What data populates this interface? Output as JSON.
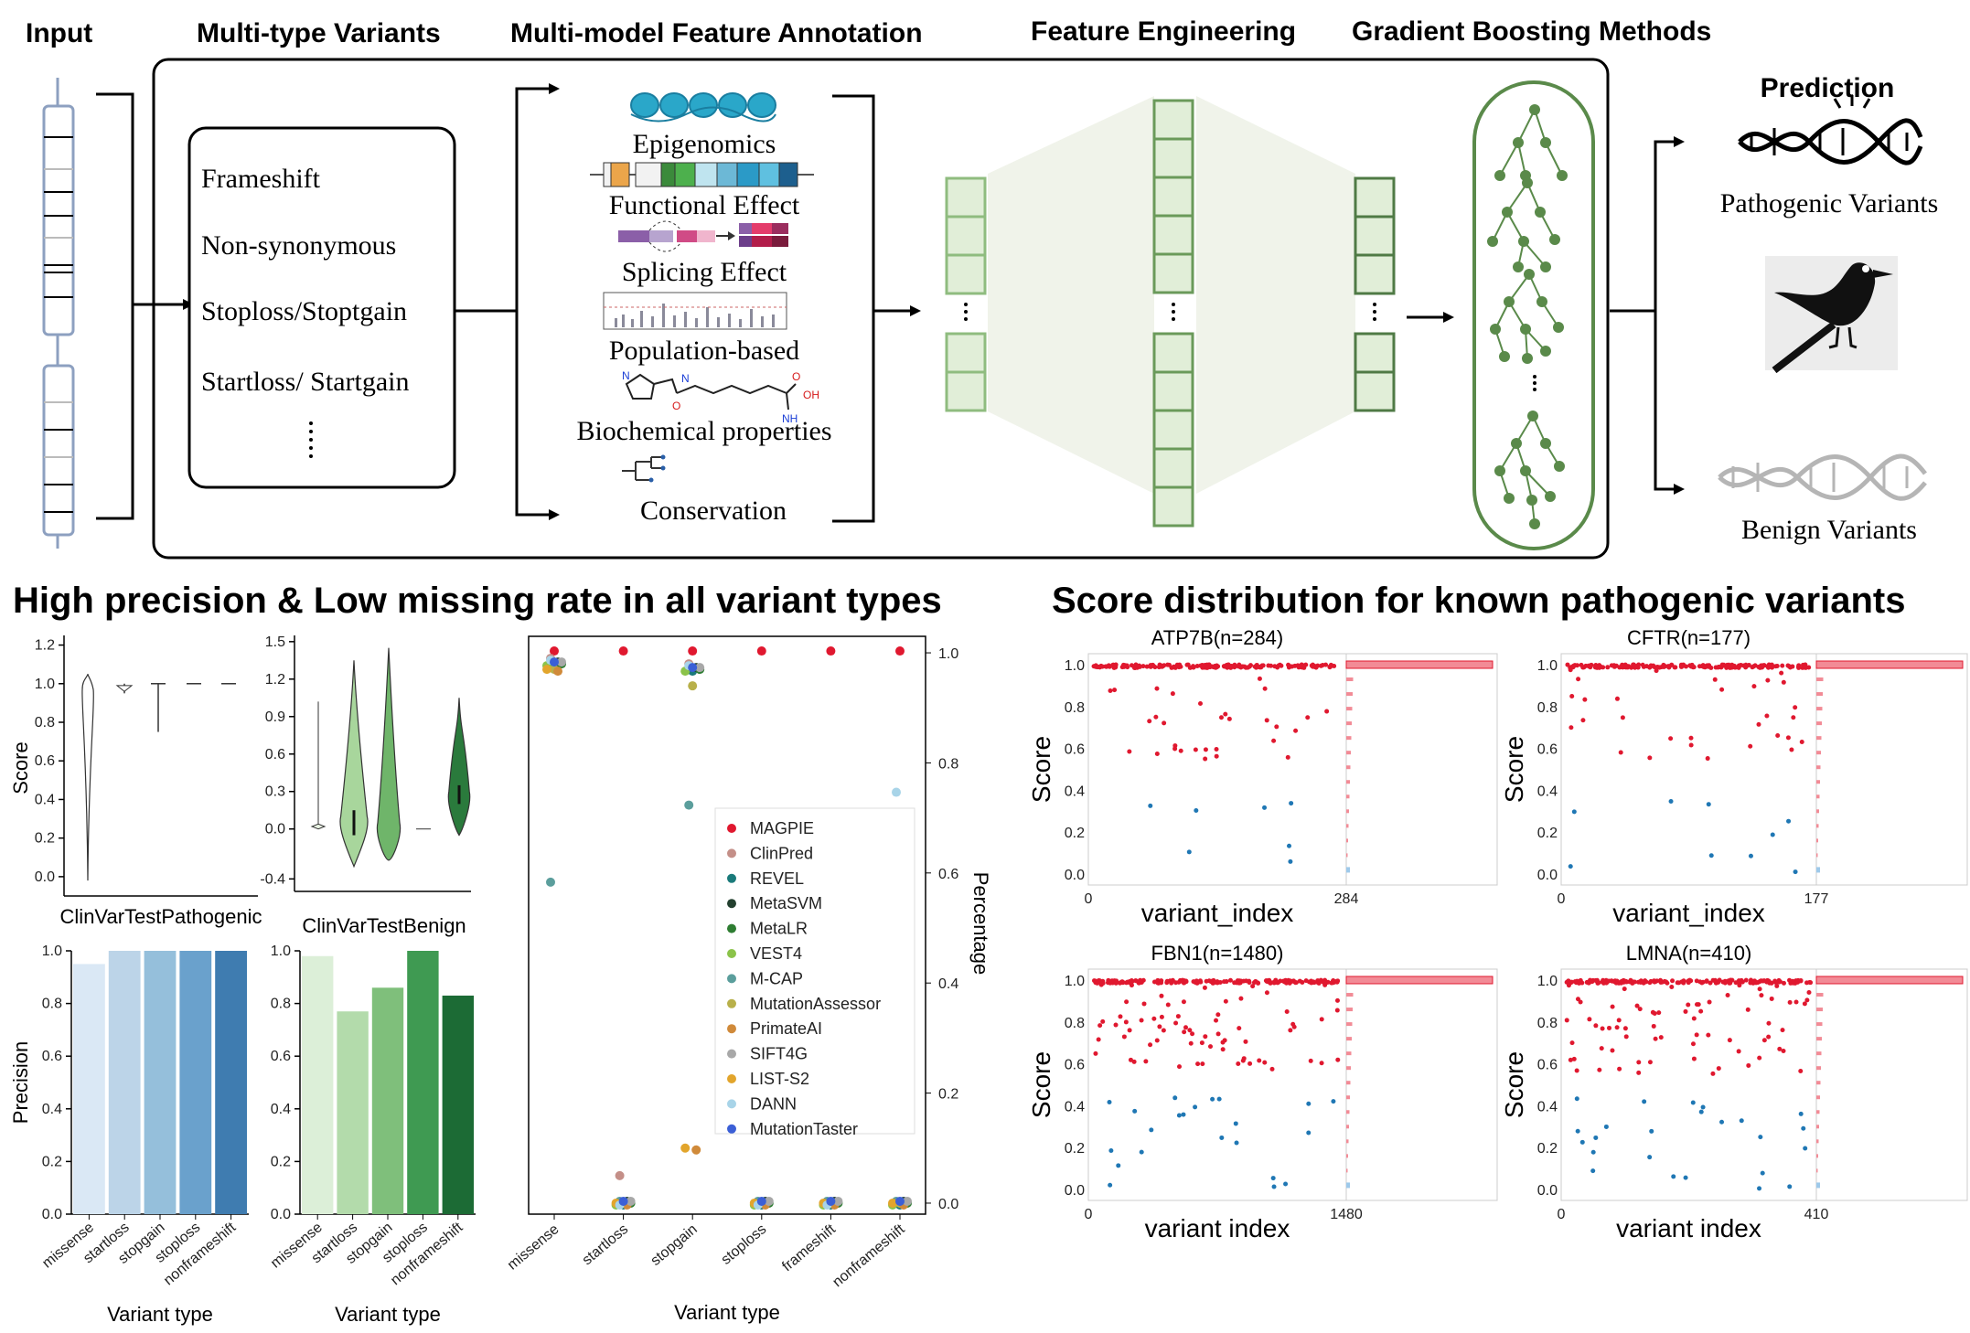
{
  "headers": {
    "input": "Input",
    "multi_type_variants": "Multi-type Variants",
    "feature_annotation": "Multi-model Feature Annotation",
    "feature_engineering": "Feature Engineering",
    "gradient_boosting": "Gradient Boosting Methods"
  },
  "variant_types_list": [
    "Frameshift",
    "Non-synonymous",
    "Stoploss/Stoptgain",
    "Startloss/ Startgain"
  ],
  "annotations": [
    "Epigenomics",
    "Functional Effect",
    "Splicing Effect",
    "Population-based",
    "Biochemical properties",
    "Conservation"
  ],
  "prediction": {
    "title": "Prediction",
    "pathogenic": "Pathogenic Variants",
    "benign": "Benign Variants"
  },
  "section_titles": {
    "left": "High precision & Low missing rate in all variant types",
    "right": "Score distribution for known pathogenic variants"
  },
  "colors": {
    "pathogenic_red": "#e0182f",
    "benign_blue": "#1f77b4",
    "panel_green": "#5a8a4a",
    "light_green_fill": "#e4efdb"
  },
  "chart_data": [
    {
      "type": "violin",
      "xlabel": "ClinVarTestPathogenic",
      "ylabel": "Score",
      "yticks": [
        "0.0",
        "0.2",
        "0.4",
        "0.6",
        "0.8",
        "1.0",
        "1.2"
      ],
      "categories": [
        "missense",
        "startloss",
        "stopgain",
        "stoploss",
        "nonframeshift"
      ]
    },
    {
      "type": "violin",
      "xlabel": "ClinVarTestBenign",
      "yticks": [
        "-0.4",
        "0.0",
        "0.3",
        "0.6",
        "0.9",
        "1.2",
        "1.5"
      ],
      "categories": [
        "missense",
        "startloss",
        "stopgain",
        "stoploss",
        "nonframeshift"
      ]
    },
    {
      "type": "bar",
      "xlabel": "Variant type",
      "ylabel": "Precision",
      "categories": [
        "missense",
        "startloss",
        "stopgain",
        "stoploss",
        "nonframeshift"
      ],
      "values": [
        0.95,
        1.0,
        1.0,
        1.0,
        1.0
      ],
      "ylim": [
        0,
        1.0
      ],
      "yticks": [
        "0.0",
        "0.2",
        "0.4",
        "0.6",
        "0.8",
        "1.0"
      ],
      "colors": [
        "#dae8f5",
        "#bcd4e8",
        "#95bfdb",
        "#6aa1cc",
        "#3f7cb0"
      ]
    },
    {
      "type": "bar",
      "xlabel": "Variant type",
      "categories": [
        "missense",
        "startloss",
        "stopgain",
        "stoploss",
        "nonframeshift"
      ],
      "values": [
        0.98,
        0.77,
        0.86,
        1.0,
        0.83
      ],
      "ylim": [
        0,
        1.0
      ],
      "yticks": [
        "0.0",
        "0.2",
        "0.4",
        "0.6",
        "0.8",
        "1.0"
      ],
      "colors": [
        "#dcefd8",
        "#b3dbab",
        "#7fbf7b",
        "#3f9a52",
        "#1c6b35"
      ]
    },
    {
      "type": "scatter",
      "xlabel": "Variant type",
      "ylabel": "Percentage",
      "categories": [
        "missense",
        "startloss",
        "stopgain",
        "stoploss",
        "frameshift",
        "nonframeshift"
      ],
      "yticks": [
        "0.0",
        "0.2",
        "0.4",
        "0.6",
        "0.8",
        "1.0"
      ],
      "ylim": [
        0,
        1.0
      ],
      "legend_position": "right",
      "series": [
        {
          "name": "MAGPIE",
          "color": "#e0182f",
          "values": [
            1.0,
            1.0,
            1.0,
            1.0,
            1.0,
            1.0
          ]
        },
        {
          "name": "ClinPred",
          "color": "#c48f88",
          "values": [
            0.99,
            0.05,
            0.98,
            0.0,
            0.0,
            0.0
          ]
        },
        {
          "name": "REVEL",
          "color": "#1a7a7a",
          "values": [
            0.98,
            0.0,
            0.97,
            0.0,
            0.0,
            0.0
          ]
        },
        {
          "name": "MetaSVM",
          "color": "#23402f",
          "values": [
            0.98,
            0.0,
            0.97,
            0.0,
            0.0,
            0.0
          ]
        },
        {
          "name": "MetaLR",
          "color": "#2e7d32",
          "values": [
            0.98,
            0.0,
            0.97,
            0.0,
            0.0,
            0.0
          ]
        },
        {
          "name": "VEST4",
          "color": "#8bc34a",
          "values": [
            0.98,
            0.0,
            0.97,
            0.0,
            0.0,
            0.0
          ]
        },
        {
          "name": "M-CAP",
          "color": "#5b9e9c",
          "values": [
            0.58,
            0.0,
            0.72,
            0.0,
            0.0,
            0.0
          ]
        },
        {
          "name": "MutationAssessor",
          "color": "#b8b04a",
          "values": [
            0.97,
            0.0,
            0.94,
            0.0,
            0.0,
            0.0
          ]
        },
        {
          "name": "PrimateAI",
          "color": "#d08a3a",
          "values": [
            0.97,
            0.0,
            0.1,
            0.0,
            0.0,
            0.0
          ]
        },
        {
          "name": "SIFT4G",
          "color": "#a8a8a8",
          "values": [
            0.98,
            0.0,
            0.97,
            0.0,
            0.0,
            0.0
          ]
        },
        {
          "name": "LIST-S2",
          "color": "#e2a52c",
          "values": [
            0.97,
            0.0,
            0.1,
            0.0,
            0.0,
            0.0
          ]
        },
        {
          "name": "DANN",
          "color": "#a8d4e8",
          "values": [
            0.99,
            0.0,
            0.98,
            0.0,
            0.0,
            0.75
          ]
        },
        {
          "name": "MutationTaster",
          "color": "#3b5fd6",
          "values": [
            0.98,
            0.0,
            0.97,
            0.0,
            0.0,
            0.0
          ]
        }
      ]
    }
  ],
  "score_panels": [
    {
      "title": "ATP7B(n=284)",
      "n": "284",
      "xlabel": "variant_index",
      "ylabel": "Score"
    },
    {
      "title": "CFTR(n=177)",
      "n": "177",
      "xlabel": "variant_index",
      "ylabel": "Score"
    },
    {
      "title": "FBN1(n=1480)",
      "n": "1480",
      "xlabel": "variant  index",
      "ylabel": "Score"
    },
    {
      "title": "LMNA(n=410)",
      "n": "410",
      "xlabel": "variant  index",
      "ylabel": "Score"
    }
  ],
  "score_zero": "0",
  "score_yticks": [
    "0.0",
    "0.2",
    "0.4",
    "0.6",
    "0.8",
    "1.0"
  ]
}
